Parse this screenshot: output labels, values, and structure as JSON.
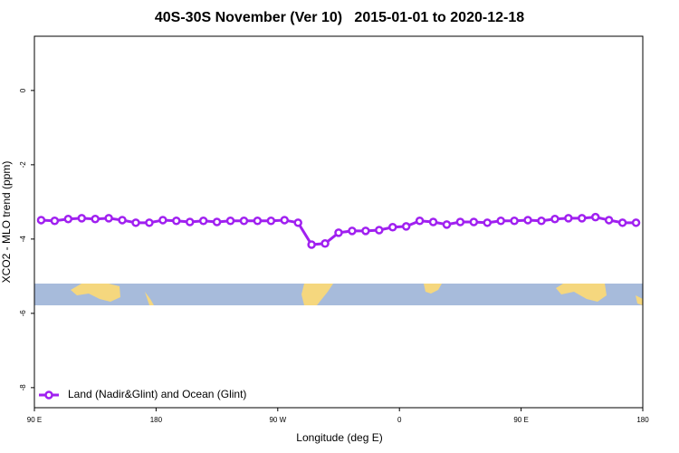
{
  "chart_data": {
    "type": "line",
    "title": "40S-30S November (Ver 10)   2015-01-01 to 2020-12-18",
    "x_label": "Longitude (deg E)",
    "y_label": "XCO2 - MLO trend (ppm)",
    "x": [
      95,
      105,
      115,
      125,
      135,
      145,
      155,
      165,
      175,
      185,
      195,
      205,
      215,
      225,
      235,
      245,
      255,
      265,
      275,
      285,
      295,
      305,
      315,
      325,
      335,
      345,
      355,
      365,
      375,
      385,
      395,
      405,
      415,
      425,
      435,
      445,
      455,
      465,
      475,
      485,
      495,
      505,
      515,
      525,
      535
    ],
    "series": [
      {
        "name": "Land (Nadir&Glint) and Ocean (Glint)",
        "color": "#a020f0",
        "values": [
          -3.49,
          -3.51,
          -3.46,
          -3.44,
          -3.46,
          -3.44,
          -3.49,
          -3.56,
          -3.56,
          -3.49,
          -3.51,
          -3.54,
          -3.51,
          -3.54,
          -3.51,
          -3.51,
          -3.51,
          -3.51,
          -3.49,
          -3.56,
          -4.15,
          -4.12,
          -3.83,
          -3.78,
          -3.78,
          -3.76,
          -3.68,
          -3.66,
          -3.51,
          -3.54,
          -3.61,
          -3.54,
          -3.54,
          -3.56,
          -3.51,
          -3.51,
          -3.49,
          -3.51,
          -3.46,
          -3.44,
          -3.44,
          -3.41,
          -3.49,
          -3.56,
          -3.56
        ]
      }
    ],
    "xlim": [
      90,
      540
    ],
    "xticks": [
      {
        "value": 90,
        "label": "90 E"
      },
      {
        "value": 180,
        "label": "180"
      },
      {
        "value": 270,
        "label": "90 W"
      },
      {
        "value": 360,
        "label": "0"
      },
      {
        "value": 450,
        "label": "90 E"
      },
      {
        "value": 540,
        "label": "180"
      }
    ],
    "ylim": [
      -8.54,
      1.46
    ],
    "yticks": [
      0,
      -2,
      -4,
      -6,
      -8
    ],
    "legend": "bottom-left"
  }
}
